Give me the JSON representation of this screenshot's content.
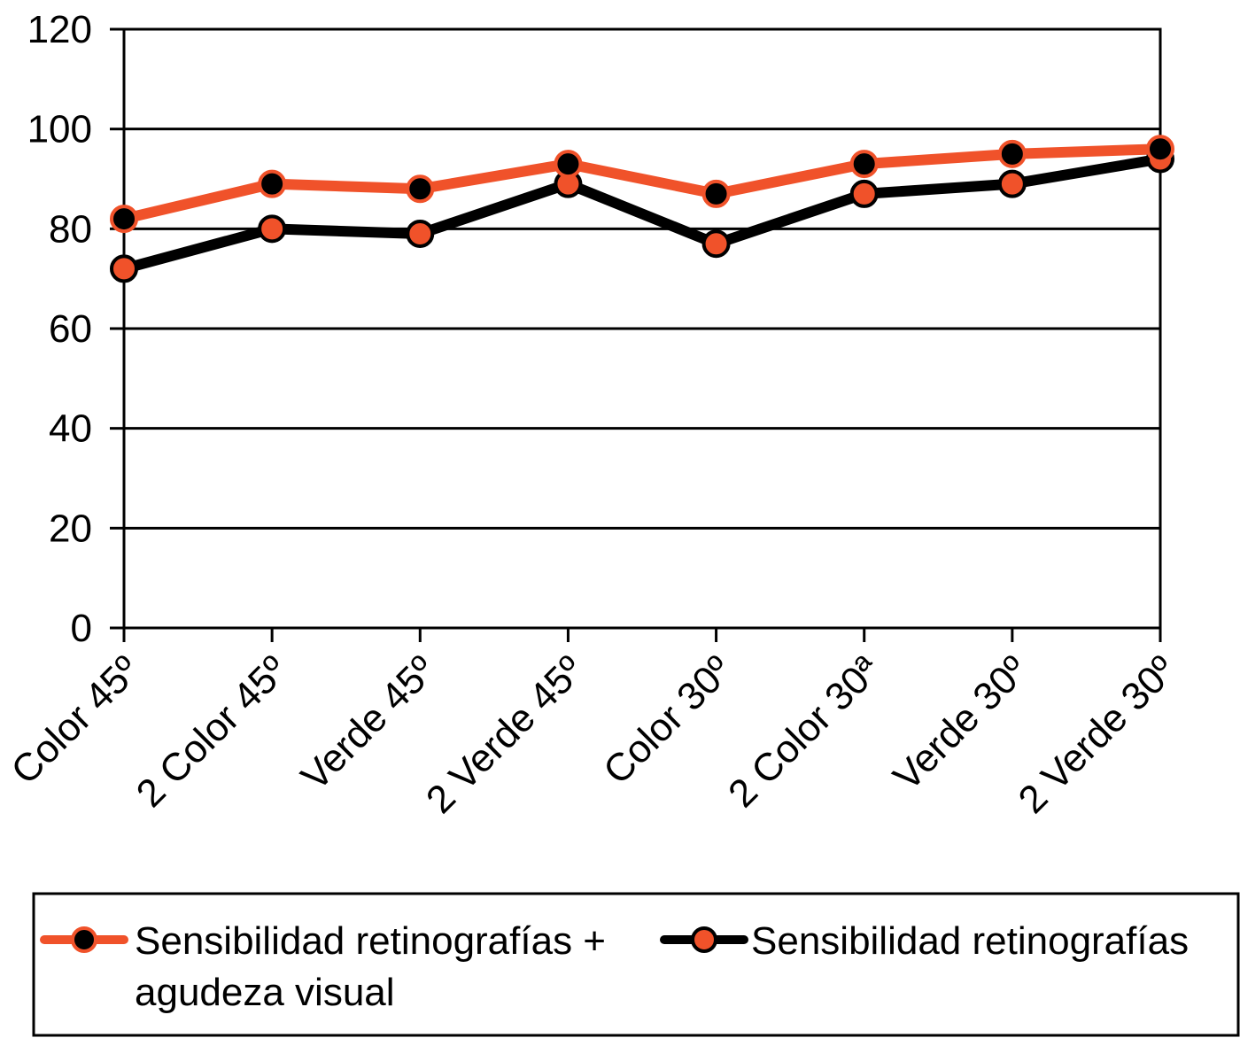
{
  "chart_data": {
    "type": "line",
    "categories": [
      "Color 45º",
      "2 Color 45º",
      "Verde 45º",
      "2 Verde 45º",
      "Color 30º",
      "2 Color 30ª",
      "Verde 30º",
      "2 Verde 30º"
    ],
    "series": [
      {
        "name": "Sensibilidad retinografías + agudeza visual",
        "name_lines": [
          "Sensibilidad retinografías +",
          "agudeza visual"
        ],
        "values": [
          82,
          89,
          88,
          93,
          87,
          93,
          95,
          96
        ],
        "line_color": "#f0522a",
        "marker_color": "#000000"
      },
      {
        "name": "Sensibilidad retinografías",
        "name_lines": [
          "Sensibilidad retinografías"
        ],
        "values": [
          72,
          80,
          79,
          89,
          77,
          87,
          89,
          94
        ],
        "line_color": "#000000",
        "marker_color": "#f0522a"
      }
    ],
    "yticks": [
      0,
      20,
      40,
      60,
      80,
      100,
      120
    ],
    "ylim": [
      0,
      120
    ],
    "grid": true,
    "legend_position": "bottom",
    "title": "",
    "xlabel": "",
    "ylabel": ""
  }
}
